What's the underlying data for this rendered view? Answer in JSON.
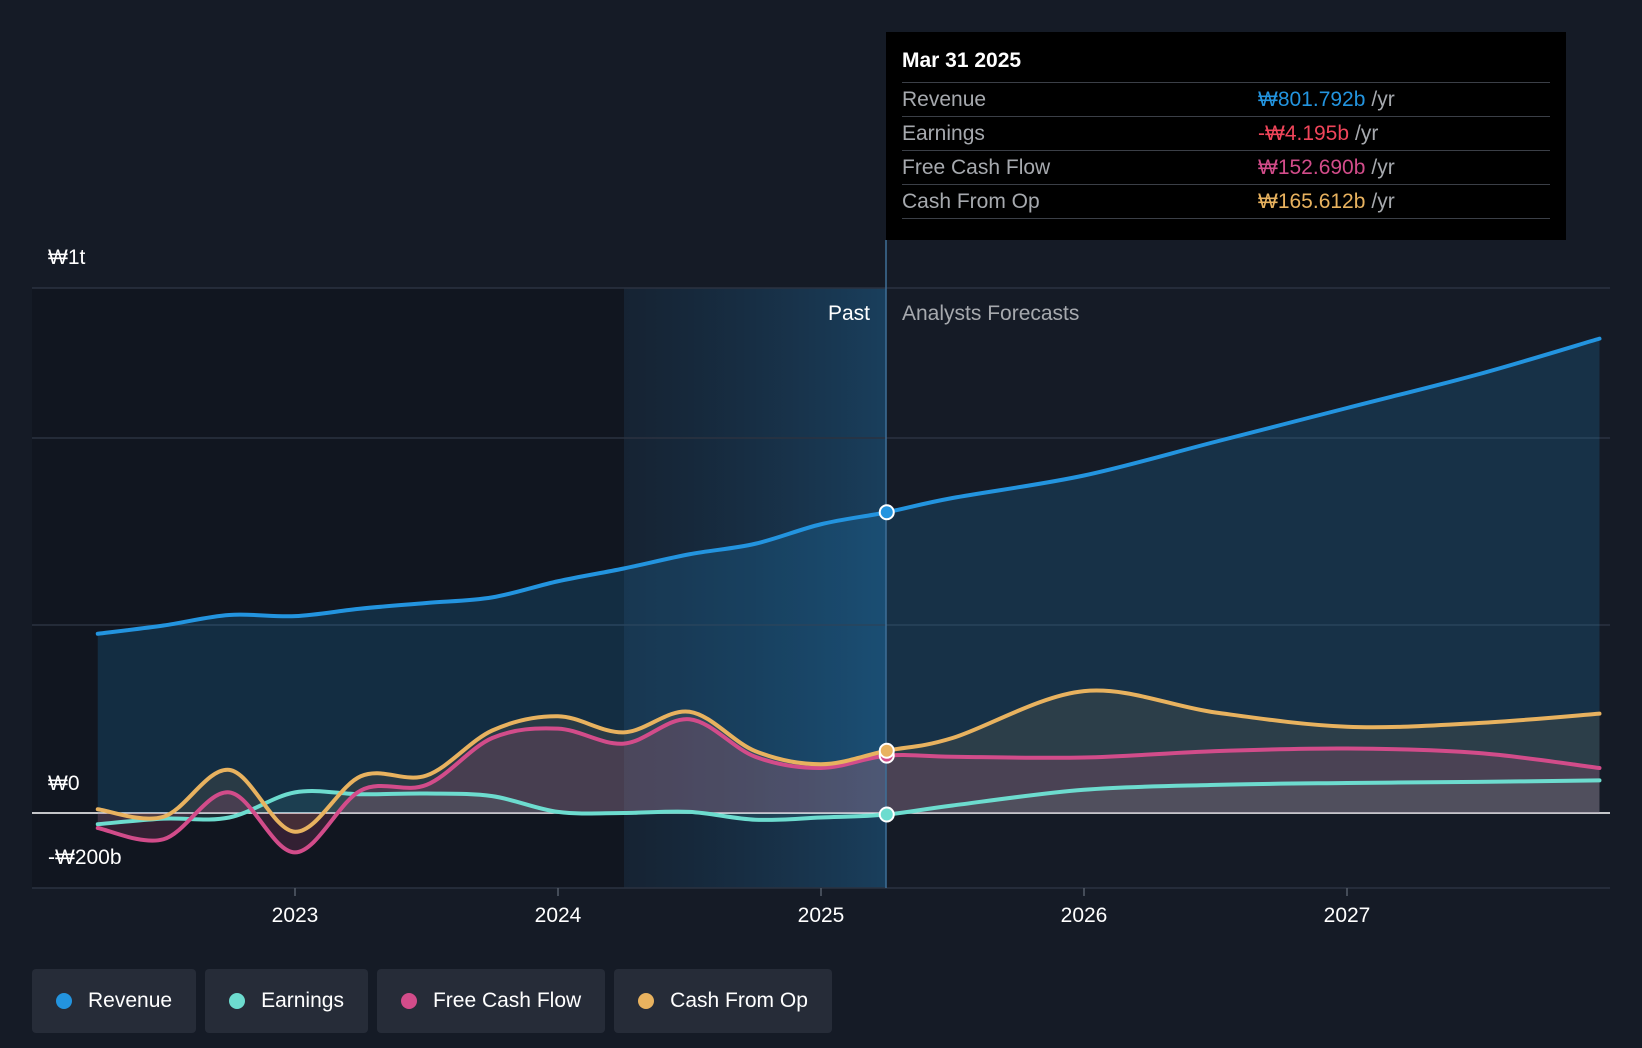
{
  "colors": {
    "background": "#151b26",
    "revenue": "#2394df",
    "earnings": "#6ddccf",
    "free_cash_flow": "#d24c8a",
    "cash_from_op": "#e8b25f",
    "negative": "#f0455a"
  },
  "tooltip": {
    "date": "Mar 31 2025",
    "rows": [
      {
        "name": "Revenue",
        "value": "₩801.792b",
        "unit": "/yr"
      },
      {
        "name": "Earnings",
        "value": "-₩4.195b",
        "unit": "/yr"
      },
      {
        "name": "Free Cash Flow",
        "value": "₩152.690b",
        "unit": "/yr"
      },
      {
        "name": "Cash From Op",
        "value": "₩165.612b",
        "unit": "/yr"
      }
    ]
  },
  "regions": {
    "past": "Past",
    "forecast": "Analysts Forecasts"
  },
  "legend": [
    {
      "label": "Revenue",
      "icon": "revenue-dot-icon"
    },
    {
      "label": "Earnings",
      "icon": "earnings-dot-icon"
    },
    {
      "label": "Free Cash Flow",
      "icon": "free-cash-flow-dot-icon"
    },
    {
      "label": "Cash From Op",
      "icon": "cash-from-op-dot-icon"
    }
  ],
  "chart_data": {
    "type": "line",
    "title": "",
    "xlabel": "",
    "ylabel": "",
    "y_tick_labels": [
      "₩1t",
      "₩0",
      "-₩200b"
    ],
    "y_ticks": [
      1400,
      0,
      -200
    ],
    "ylim": [
      -200,
      1400
    ],
    "x_tick_labels": [
      "2023",
      "2024",
      "2025",
      "2026",
      "2027"
    ],
    "x_ticks": [
      2023.0,
      2024.0,
      2025.0,
      2026.0,
      2027.0
    ],
    "xlim": [
      2022.0,
      2028.0
    ],
    "past_start": 2024.25,
    "forecast_start": 2025.25,
    "grid": true,
    "legend_position": "bottom",
    "series": [
      {
        "name": "Revenue",
        "x": [
          2022.25,
          2022.5,
          2022.75,
          2023.0,
          2023.25,
          2023.5,
          2023.75,
          2024.0,
          2024.25,
          2024.5,
          2024.75,
          2025.0,
          2025.25,
          2025.5,
          2026.0,
          2026.5,
          2027.0,
          2027.5,
          2028.0
        ],
        "y": [
          478,
          500,
          528,
          525,
          545,
          560,
          575,
          618,
          652,
          690,
          718,
          770,
          802,
          840,
          900,
          990,
          1080,
          1170,
          1265
        ]
      },
      {
        "name": "Earnings",
        "x": [
          2022.25,
          2022.5,
          2022.75,
          2023.0,
          2023.25,
          2023.5,
          2023.75,
          2024.0,
          2024.25,
          2024.5,
          2024.75,
          2025.0,
          2025.25,
          2025.5,
          2026.0,
          2026.5,
          2027.0,
          2027.5,
          2028.0
        ],
        "y": [
          -30,
          -15,
          -12,
          55,
          50,
          52,
          45,
          3,
          0,
          3,
          -18,
          -12,
          -4,
          20,
          62,
          75,
          80,
          83,
          87
        ]
      },
      {
        "name": "Free Cash Flow",
        "x": [
          2022.25,
          2022.5,
          2022.75,
          2023.0,
          2023.25,
          2023.5,
          2023.75,
          2024.0,
          2024.25,
          2024.5,
          2024.75,
          2025.0,
          2025.25,
          2025.5,
          2026.0,
          2026.5,
          2027.0,
          2027.5,
          2028.0
        ],
        "y": [
          -40,
          -70,
          55,
          -105,
          60,
          75,
          200,
          225,
          185,
          250,
          150,
          120,
          153,
          150,
          148,
          165,
          172,
          160,
          120
        ]
      },
      {
        "name": "Cash From Op",
        "x": [
          2022.25,
          2022.5,
          2022.75,
          2023.0,
          2023.25,
          2023.5,
          2023.75,
          2024.0,
          2024.25,
          2024.5,
          2024.75,
          2025.0,
          2025.25,
          2025.5,
          2026.0,
          2026.5,
          2027.0,
          2027.5,
          2028.0
        ],
        "y": [
          10,
          -10,
          115,
          -50,
          98,
          100,
          220,
          258,
          215,
          270,
          165,
          130,
          166,
          200,
          325,
          268,
          230,
          240,
          265
        ]
      }
    ]
  }
}
